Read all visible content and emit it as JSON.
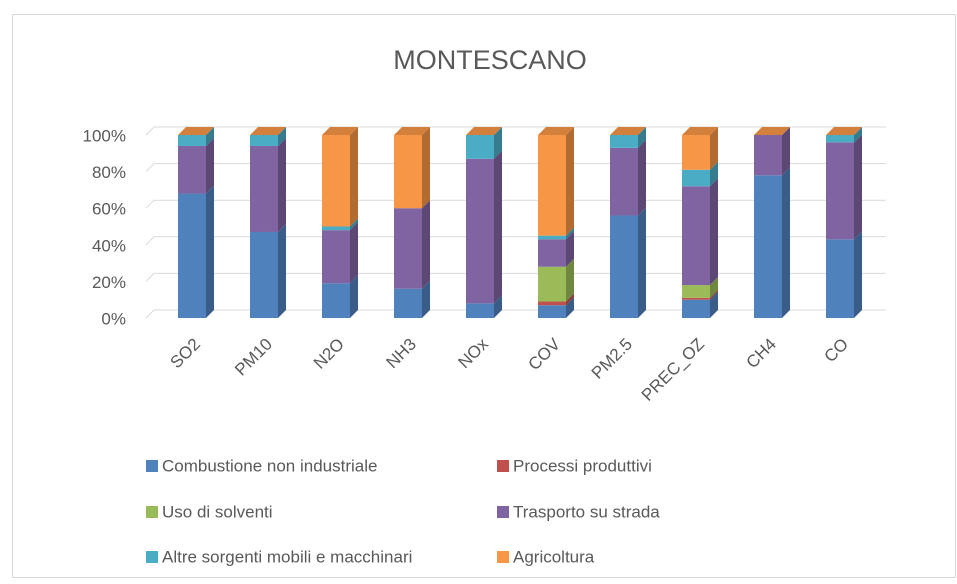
{
  "chart_data": {
    "type": "bar",
    "stacked": true,
    "title": "MONTESCANO",
    "categories": [
      "SO2",
      "PM10",
      "N2O",
      "NH3",
      "NOx",
      "COV",
      "PM2.5",
      "PREC_OZ",
      "CH4",
      "CO"
    ],
    "series": [
      {
        "name": "Combustione non industriale",
        "color": "#4f81bd",
        "values": [
          68,
          47,
          19,
          16,
          8,
          7,
          56,
          10,
          78,
          43
        ]
      },
      {
        "name": "Processi produttivi",
        "color": "#c0504d",
        "values": [
          0,
          0,
          0,
          0,
          0,
          2,
          0,
          1,
          0,
          0
        ]
      },
      {
        "name": "Uso di solventi",
        "color": "#9bbb59",
        "values": [
          0,
          0,
          0,
          0,
          0,
          19,
          0,
          7,
          0,
          0
        ]
      },
      {
        "name": "Trasporto su strada",
        "color": "#8064a2",
        "values": [
          26,
          47,
          29,
          44,
          79,
          15,
          37,
          54,
          22,
          53
        ]
      },
      {
        "name": "Altre sorgenti mobili e macchinari",
        "color": "#4bacc6",
        "values": [
          6,
          6,
          2,
          0,
          13,
          2,
          7,
          9,
          0,
          4
        ]
      },
      {
        "name": "Agricoltura",
        "color": "#f79646",
        "values": [
          0,
          0,
          50,
          40,
          0,
          55,
          0,
          19,
          0,
          0
        ]
      }
    ],
    "ylim": [
      0,
      100
    ],
    "yticks": [
      {
        "value": 0,
        "label": "0%"
      },
      {
        "value": 20,
        "label": "20%"
      },
      {
        "value": 40,
        "label": "40%"
      },
      {
        "value": 60,
        "label": "60%"
      },
      {
        "value": 80,
        "label": "80%"
      },
      {
        "value": 100,
        "label": "100%"
      }
    ],
    "grid": true,
    "legend": "bottom"
  }
}
